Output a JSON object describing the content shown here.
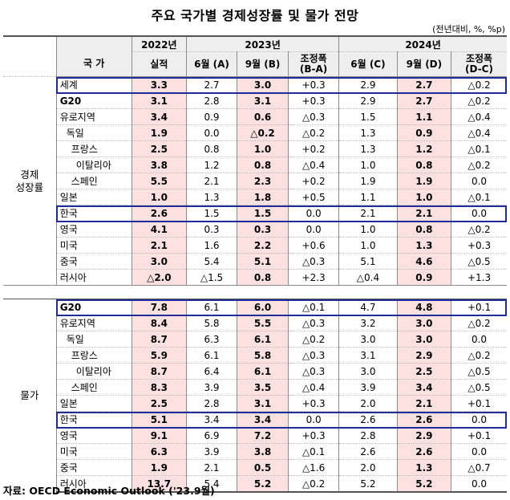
{
  "title": "주요 국가별 경제성장률 및 물가 전망",
  "unit": "(전년대비, %, %p)",
  "source": "자료: OECD Economic Outlook ('23.9월)",
  "header": {
    "country": "국 가",
    "y2022": "2022년",
    "y2023": "2023년",
    "y2024": "2024년",
    "actual": "실적",
    "jun_a": "6월 (A)",
    "sep_b": "9월 (B)",
    "adj_ba_1": "조정폭",
    "adj_ba_2": "(B-A)",
    "jun_c": "6월 (C)",
    "sep_d": "9월 (D)",
    "adj_dc_1": "조정폭",
    "adj_dc_2": "(D-C)"
  },
  "sections": [
    {
      "label_line1": "경제",
      "label_line2": "성장률",
      "rows": [
        {
          "name": "세계",
          "vals": [
            "3.3",
            "2.7",
            "3.0",
            "+0.3",
            "2.9",
            "2.7",
            "△0.2"
          ]
        },
        {
          "name": "G20",
          "vals": [
            "3.1",
            "2.8",
            "3.1",
            "+0.3",
            "2.9",
            "2.7",
            "△0.2"
          ]
        },
        {
          "name": "유로지역",
          "vals": [
            "3.4",
            "0.9",
            "0.6",
            "△0.3",
            "1.5",
            "1.1",
            "△0.4"
          ]
        },
        {
          "name": "독일",
          "vals": [
            "1.9",
            "0.0",
            "△0.2",
            "△0.2",
            "1.3",
            "0.9",
            "△0.4"
          ]
        },
        {
          "name": "프랑스",
          "vals": [
            "2.5",
            "0.8",
            "1.0",
            "+0.2",
            "1.3",
            "1.2",
            "△0.1"
          ]
        },
        {
          "name": "이탈리아",
          "vals": [
            "3.8",
            "1.2",
            "0.8",
            "△0.4",
            "1.0",
            "0.8",
            "△0.2"
          ]
        },
        {
          "name": "스페인",
          "vals": [
            "5.5",
            "2.1",
            "2.3",
            "+0.2",
            "1.9",
            "1.9",
            "0.0"
          ]
        },
        {
          "name": "일본",
          "vals": [
            "1.0",
            "1.3",
            "1.8",
            "+0.5",
            "1.1",
            "1.0",
            "△0.1"
          ]
        },
        {
          "name": "한국",
          "vals": [
            "2.6",
            "1.5",
            "1.5",
            "0.0",
            "2.1",
            "2.1",
            "0.0"
          ]
        },
        {
          "name": "영국",
          "vals": [
            "4.1",
            "0.3",
            "0.3",
            "0.0",
            "1.0",
            "0.8",
            "△0.2"
          ]
        },
        {
          "name": "미국",
          "vals": [
            "2.1",
            "1.6",
            "2.2",
            "+0.6",
            "1.0",
            "1.3",
            "+0.3"
          ]
        },
        {
          "name": "중국",
          "vals": [
            "3.0",
            "5.4",
            "5.1",
            "△0.3",
            "5.1",
            "4.6",
            "△0.5"
          ]
        },
        {
          "name": "러시아",
          "vals": [
            "△2.0",
            "△1.5",
            "0.8",
            "+2.3",
            "△0.4",
            "0.9",
            "+1.3"
          ]
        }
      ]
    },
    {
      "label_line1": "물가",
      "label_line2": "",
      "rows": [
        {
          "name": "G20",
          "vals": [
            "7.8",
            "6.1",
            "6.0",
            "△0.1",
            "4.7",
            "4.8",
            "+0.1"
          ]
        },
        {
          "name": "유로지역",
          "vals": [
            "8.4",
            "5.8",
            "5.5",
            "△0.3",
            "3.2",
            "3.0",
            "△0.2"
          ]
        },
        {
          "name": "독일",
          "vals": [
            "8.7",
            "6.3",
            "6.1",
            "△0.2",
            "3.0",
            "3.0",
            "0.0"
          ]
        },
        {
          "name": "프랑스",
          "vals": [
            "5.9",
            "6.1",
            "5.8",
            "△0.3",
            "3.1",
            "2.9",
            "△0.2"
          ]
        },
        {
          "name": "이탈리아",
          "vals": [
            "8.7",
            "6.4",
            "6.1",
            "△0.3",
            "3.0",
            "2.5",
            "△0.5"
          ]
        },
        {
          "name": "스페인",
          "vals": [
            "8.3",
            "3.9",
            "3.5",
            "△0.4",
            "3.9",
            "3.4",
            "△0.5"
          ]
        },
        {
          "name": "일본",
          "vals": [
            "2.5",
            "2.8",
            "3.1",
            "+0.3",
            "2.0",
            "2.1",
            "+0.1"
          ]
        },
        {
          "name": "한국",
          "vals": [
            "5.1",
            "3.4",
            "3.4",
            "0.0",
            "2.6",
            "2.6",
            "0.0"
          ]
        },
        {
          "name": "영국",
          "vals": [
            "9.1",
            "6.9",
            "7.2",
            "+0.3",
            "2.8",
            "2.9",
            "+0.1"
          ]
        },
        {
          "name": "미국",
          "vals": [
            "6.3",
            "3.9",
            "3.8",
            "△0.1",
            "2.6",
            "2.6",
            "0.0"
          ]
        },
        {
          "name": "중국",
          "vals": [
            "1.9",
            "2.1",
            "0.5",
            "△1.6",
            "2.0",
            "1.3",
            "△0.7"
          ]
        },
        {
          "name": "러시아",
          "vals": [
            "13.7",
            "5.4",
            "5.2",
            "△0.2",
            "5.2",
            "5.2",
            "0.0"
          ]
        }
      ]
    }
  ],
  "colors": {
    "highlight_fill": "#fde1e1",
    "header_fill": "#eeeeee",
    "box_border": "#1f2d9b"
  }
}
